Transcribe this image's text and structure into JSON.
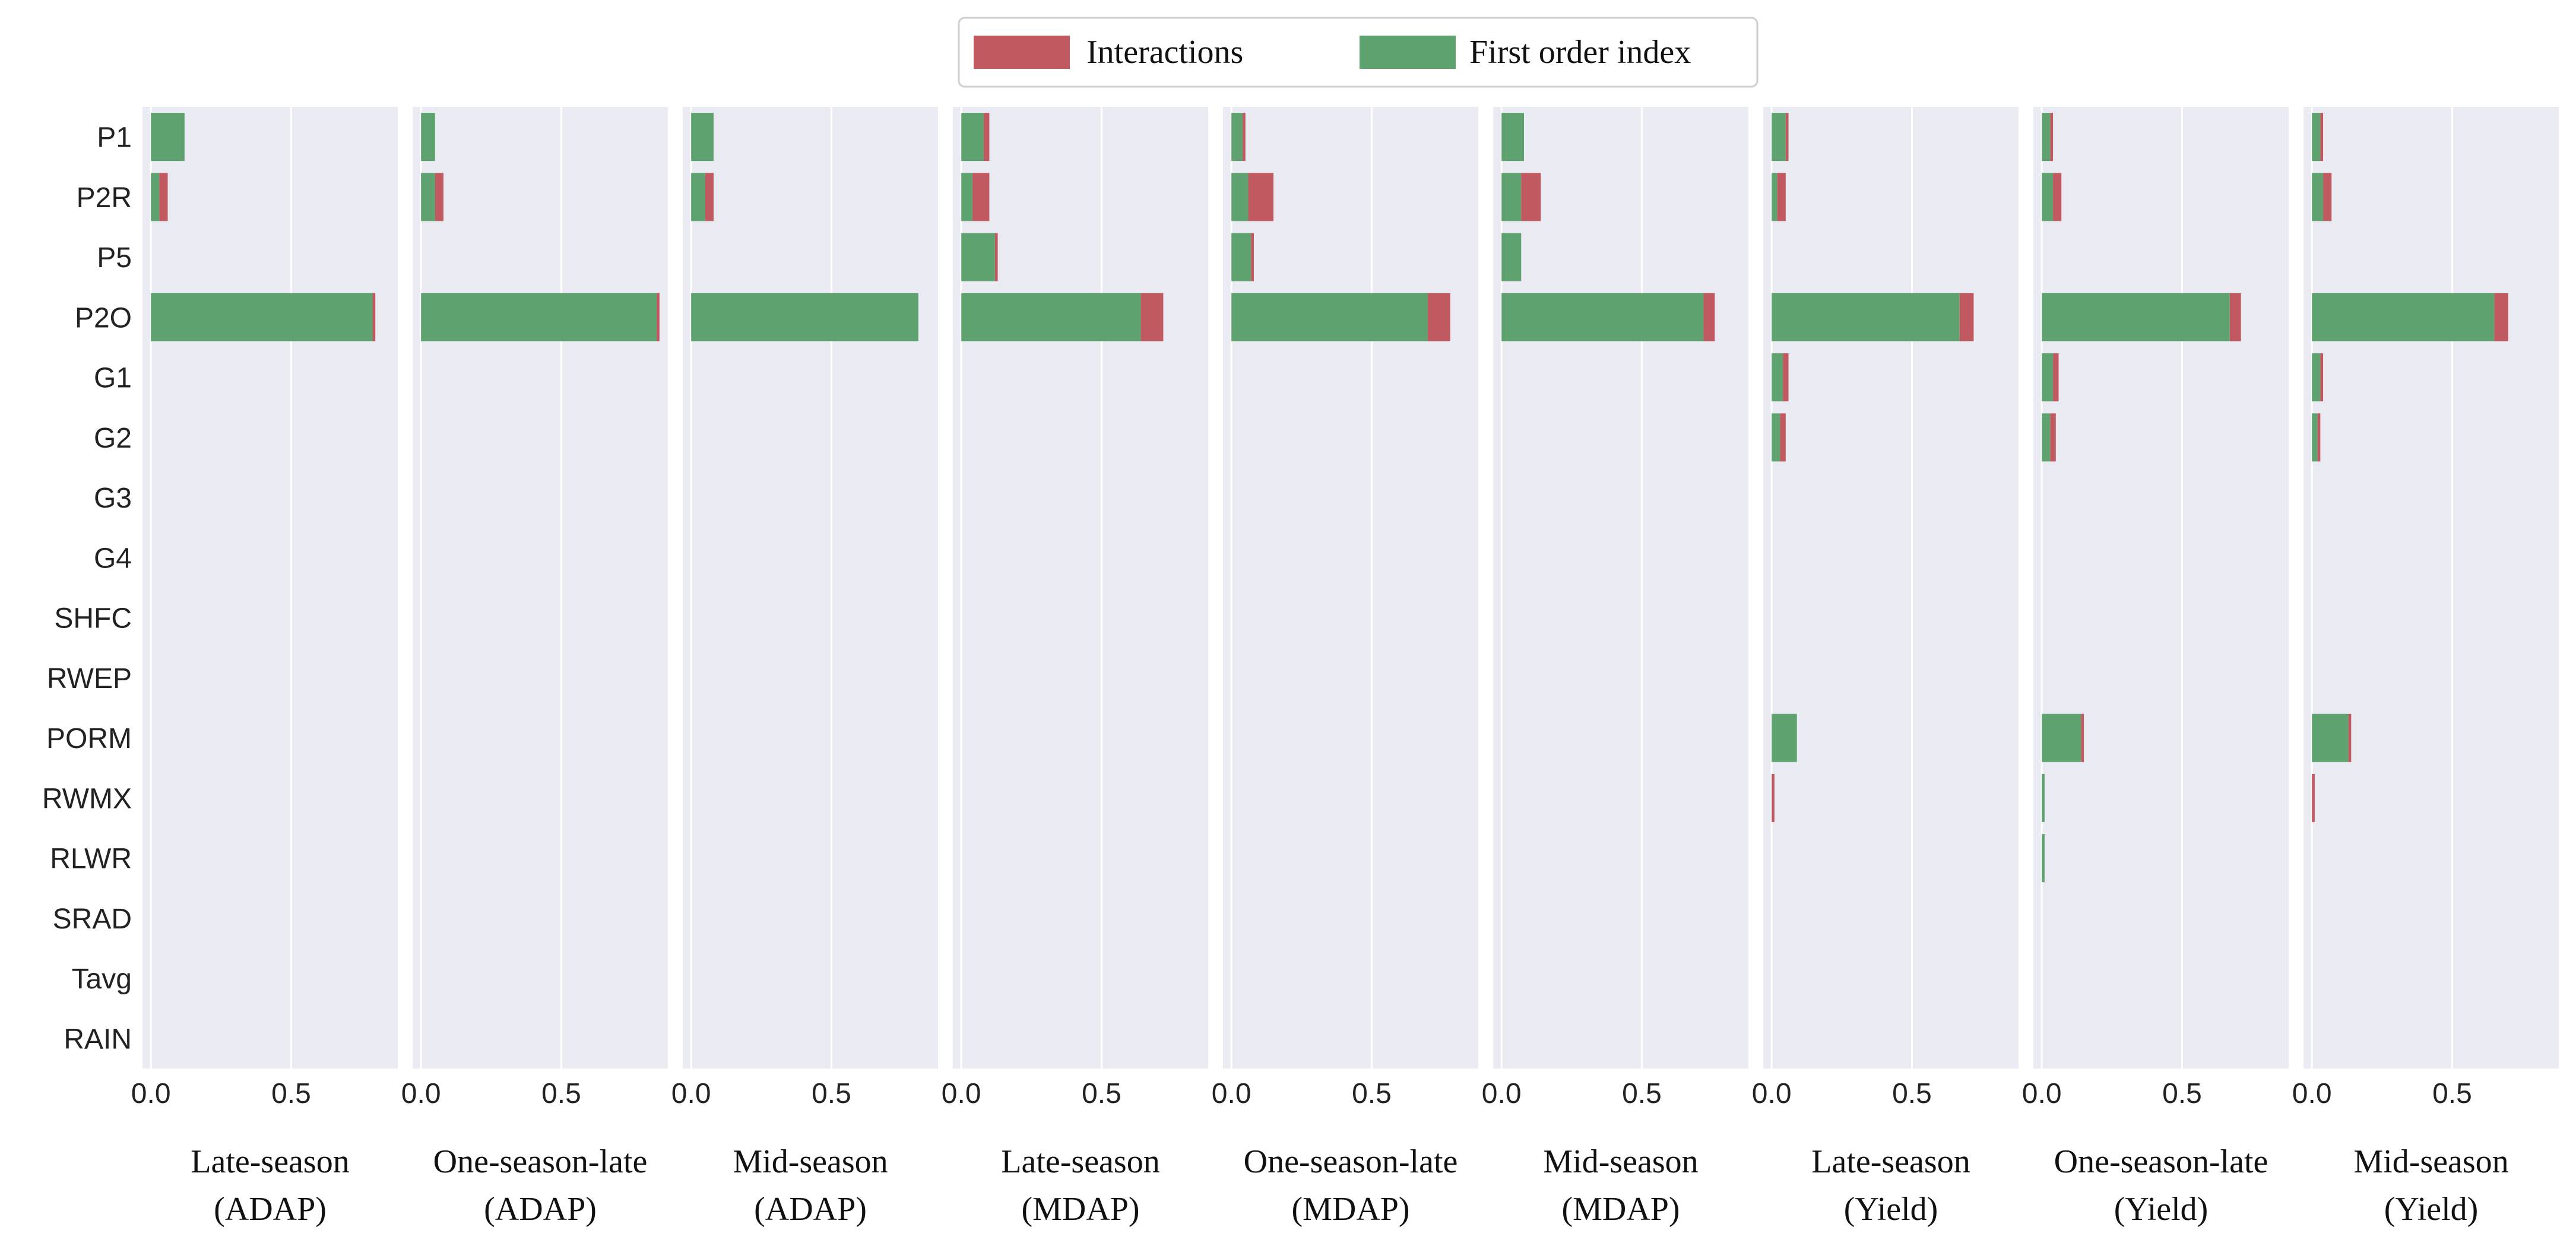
{
  "chart_data": {
    "type": "bar",
    "orientation": "horizontal",
    "stacked": true,
    "variables": [
      "P1",
      "P2R",
      "P5",
      "P2O",
      "G1",
      "G2",
      "G3",
      "G4",
      "SHFC",
      "RWEP",
      "PORM",
      "RWMX",
      "RLWR",
      "SRAD",
      "Tavg",
      "RAIN"
    ],
    "legend": {
      "position": "top-center",
      "entries": [
        {
          "name": "Interactions",
          "color": "#c05a60"
        },
        {
          "name": "First order index",
          "color": "#5ea36f"
        }
      ]
    },
    "colors": {
      "first_order": "#5ea36f",
      "interactions": "#c05a60",
      "panel_bg": "#eaeaf2",
      "grid": "#ffffff"
    },
    "xlim": [
      -0.03,
      0.88
    ],
    "xticks": [
      {
        "value": 0.0,
        "label": "0.0"
      },
      {
        "value": 0.5,
        "label": "0.5"
      }
    ],
    "panels": [
      {
        "title_line1": "Late-season",
        "title_line2": "(ADAP)",
        "first_order": [
          0.12,
          0.03,
          0,
          0.79,
          0,
          0,
          0,
          0,
          0,
          0,
          0,
          0,
          0,
          0,
          0,
          0
        ],
        "interactions": [
          0,
          0.03,
          0,
          0.01,
          0,
          0,
          0,
          0,
          0,
          0,
          0,
          0,
          0,
          0,
          0,
          0
        ]
      },
      {
        "title_line1": "One-season-late",
        "title_line2": "(ADAP)",
        "first_order": [
          0.05,
          0.05,
          0,
          0.84,
          0,
          0,
          0,
          0,
          0,
          0,
          0,
          0,
          0,
          0,
          0,
          0
        ],
        "interactions": [
          0,
          0.03,
          0,
          0.01,
          0,
          0,
          0,
          0,
          0,
          0,
          0,
          0,
          0,
          0,
          0,
          0
        ]
      },
      {
        "title_line1": "Mid-season",
        "title_line2": "(ADAP)",
        "first_order": [
          0.08,
          0.05,
          0,
          0.81,
          0,
          0,
          0,
          0,
          0,
          0,
          0,
          0,
          0,
          0,
          0,
          0
        ],
        "interactions": [
          0,
          0.03,
          0,
          0,
          0,
          0,
          0,
          0,
          0,
          0,
          0,
          0,
          0,
          0,
          0,
          0
        ]
      },
      {
        "title_line1": "Late-season",
        "title_line2": "(MDAP)",
        "first_order": [
          0.08,
          0.04,
          0.12,
          0.64,
          0,
          0,
          0,
          0,
          0,
          0,
          0,
          0,
          0,
          0,
          0,
          0
        ],
        "interactions": [
          0.02,
          0.06,
          0.01,
          0.08,
          0,
          0,
          0,
          0,
          0,
          0,
          0,
          0,
          0,
          0,
          0,
          0
        ]
      },
      {
        "title_line1": "One-season-late",
        "title_line2": "(MDAP)",
        "first_order": [
          0.04,
          0.06,
          0.07,
          0.7,
          0,
          0,
          0,
          0,
          0,
          0,
          0,
          0,
          0,
          0,
          0,
          0
        ],
        "interactions": [
          0.01,
          0.09,
          0.01,
          0.08,
          0,
          0,
          0,
          0,
          0,
          0,
          0,
          0,
          0,
          0,
          0,
          0
        ]
      },
      {
        "title_line1": "Mid-season",
        "title_line2": "(MDAP)",
        "first_order": [
          0.08,
          0.07,
          0.07,
          0.72,
          0,
          0,
          0,
          0,
          0,
          0,
          0,
          0,
          0,
          0,
          0,
          0
        ],
        "interactions": [
          0,
          0.07,
          0,
          0.04,
          0,
          0,
          0,
          0,
          0,
          0,
          0,
          0,
          0,
          0,
          0,
          0
        ]
      },
      {
        "title_line1": "Late-season",
        "title_line2": "(Yield)",
        "first_order": [
          0.05,
          0.02,
          0,
          0.67,
          0.04,
          0.03,
          0,
          0,
          0,
          0,
          0.09,
          0,
          0,
          0,
          0,
          0
        ],
        "interactions": [
          0.01,
          0.03,
          0,
          0.05,
          0.02,
          0.02,
          0,
          0,
          0,
          0,
          0,
          0.01,
          0,
          0,
          0,
          0
        ],
        "note": "RWMX shows only a faint interactions sliver"
      },
      {
        "title_line1": "One-season-late",
        "title_line2": "(Yield)",
        "first_order": [
          0.03,
          0.04,
          0,
          0.67,
          0.04,
          0.03,
          0,
          0,
          0,
          0,
          0.14,
          0.01,
          0.01,
          0,
          0,
          0
        ],
        "interactions": [
          0.01,
          0.03,
          0,
          0.04,
          0.02,
          0.02,
          0,
          0,
          0,
          0,
          0.01,
          0,
          0,
          0,
          0,
          0
        ]
      },
      {
        "title_line1": "Mid-season",
        "title_line2": "(Yield)",
        "first_order": [
          0.03,
          0.04,
          0,
          0.65,
          0.03,
          0.02,
          0,
          0,
          0,
          0,
          0.13,
          0,
          0,
          0,
          0,
          0
        ],
        "interactions": [
          0.01,
          0.03,
          0,
          0.05,
          0.01,
          0.01,
          0,
          0,
          0,
          0,
          0.01,
          0.01,
          0,
          0,
          0,
          0
        ]
      }
    ]
  }
}
